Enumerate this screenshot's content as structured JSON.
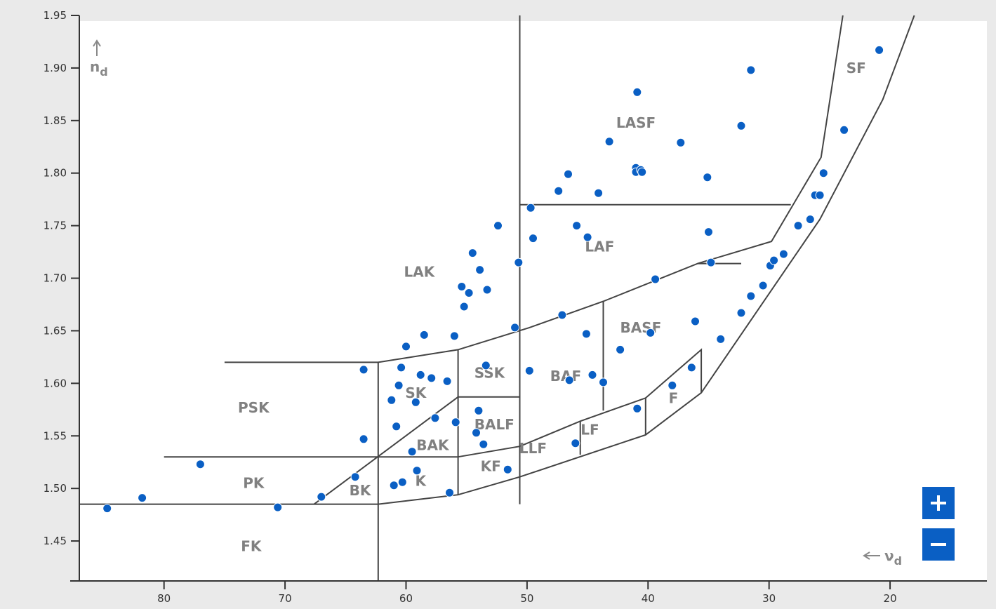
{
  "chart_data": {
    "type": "scatter",
    "xlabel": "νd",
    "ylabel": "nd",
    "xlim": [
      87,
      12
    ],
    "ylim": [
      1.412,
      1.95
    ],
    "x_reversed": true,
    "x_ticks": [
      80,
      70,
      60,
      50,
      40,
      30,
      20
    ],
    "y_ticks": [
      1.45,
      1.5,
      1.55,
      1.6,
      1.65,
      1.7,
      1.75,
      1.8,
      1.85,
      1.9,
      1.95
    ],
    "point_color": "#0a5fc4",
    "boundary_color": "#444444",
    "regions": [
      {
        "label": "LASF",
        "x": 41.0,
        "y": 1.847
      },
      {
        "label": "SF",
        "x": 22.8,
        "y": 1.899
      },
      {
        "label": "LAF",
        "x": 44.0,
        "y": 1.729
      },
      {
        "label": "LAK",
        "x": 58.9,
        "y": 1.705
      },
      {
        "label": "BASF",
        "x": 40.6,
        "y": 1.652
      },
      {
        "label": "SSK",
        "x": 53.1,
        "y": 1.609
      },
      {
        "label": "BAF",
        "x": 46.8,
        "y": 1.606
      },
      {
        "label": "SK",
        "x": 59.2,
        "y": 1.59
      },
      {
        "label": "PSK",
        "x": 72.6,
        "y": 1.576
      },
      {
        "label": "F",
        "x": 37.9,
        "y": 1.585
      },
      {
        "label": "BALF",
        "x": 52.7,
        "y": 1.56
      },
      {
        "label": "LF",
        "x": 44.8,
        "y": 1.555
      },
      {
        "label": "BAK",
        "x": 57.8,
        "y": 1.54
      },
      {
        "label": "LLF",
        "x": 49.5,
        "y": 1.537
      },
      {
        "label": "KF",
        "x": 53.0,
        "y": 1.52
      },
      {
        "label": "PK",
        "x": 72.6,
        "y": 1.504
      },
      {
        "label": "K",
        "x": 58.8,
        "y": 1.506
      },
      {
        "label": "BK",
        "x": 63.8,
        "y": 1.497
      },
      {
        "label": "FK",
        "x": 72.8,
        "y": 1.444
      }
    ],
    "boundaries": [
      [
        [
          87,
          1.485
        ],
        [
          62.3,
          1.485
        ],
        [
          55.7,
          1.494
        ],
        [
          50.6,
          1.511
        ],
        [
          40.2,
          1.551
        ],
        [
          35.6,
          1.591
        ],
        [
          25.8,
          1.756
        ],
        [
          20.6,
          1.87
        ],
        [
          18.0,
          1.95
        ]
      ],
      [
        [
          75.0,
          1.62
        ],
        [
          62.3,
          1.62
        ],
        [
          55.7,
          1.632
        ],
        [
          49.8,
          1.653
        ],
        [
          43.7,
          1.678
        ],
        [
          35.9,
          1.714
        ],
        [
          32.3,
          1.714
        ]
      ],
      [
        [
          50.6,
          1.77
        ],
        [
          28.2,
          1.77
        ]
      ],
      [
        [
          50.6,
          1.95
        ],
        [
          50.6,
          1.485
        ]
      ],
      [
        [
          62.3,
          1.62
        ],
        [
          62.3,
          1.412
        ]
      ],
      [
        [
          80.0,
          1.53
        ],
        [
          55.7,
          1.53
        ]
      ],
      [
        [
          67.6,
          1.485
        ],
        [
          55.7,
          1.587
        ],
        [
          50.6,
          1.587
        ]
      ],
      [
        [
          55.7,
          1.632
        ],
        [
          55.7,
          1.494
        ]
      ],
      [
        [
          55.7,
          1.53
        ],
        [
          50.6,
          1.54
        ],
        [
          45.6,
          1.564
        ],
        [
          40.2,
          1.586
        ],
        [
          35.6,
          1.632
        ],
        [
          35.6,
          1.591
        ]
      ],
      [
        [
          43.7,
          1.678
        ],
        [
          43.7,
          1.574
        ]
      ],
      [
        [
          45.6,
          1.564
        ],
        [
          45.6,
          1.532
        ]
      ],
      [
        [
          40.2,
          1.586
        ],
        [
          40.2,
          1.551
        ]
      ],
      [
        [
          35.9,
          1.714
        ],
        [
          29.8,
          1.735
        ],
        [
          25.7,
          1.815
        ],
        [
          23.9,
          1.95
        ]
      ]
    ],
    "points": [
      [
        84.7,
        1.481
      ],
      [
        81.8,
        1.491
      ],
      [
        77.0,
        1.523
      ],
      [
        70.6,
        1.482
      ],
      [
        67.0,
        1.492
      ],
      [
        64.2,
        1.511
      ],
      [
        63.5,
        1.547
      ],
      [
        63.5,
        1.613
      ],
      [
        61.2,
        1.584
      ],
      [
        60.8,
        1.559
      ],
      [
        60.6,
        1.598
      ],
      [
        60.4,
        1.615
      ],
      [
        60.0,
        1.635
      ],
      [
        59.5,
        1.535
      ],
      [
        61.0,
        1.503
      ],
      [
        60.3,
        1.506
      ],
      [
        59.2,
        1.582
      ],
      [
        59.1,
        1.517
      ],
      [
        58.8,
        1.608
      ],
      [
        58.5,
        1.646
      ],
      [
        57.9,
        1.605
      ],
      [
        57.6,
        1.567
      ],
      [
        56.6,
        1.602
      ],
      [
        56.4,
        1.496
      ],
      [
        56.0,
        1.645
      ],
      [
        55.9,
        1.563
      ],
      [
        55.4,
        1.692
      ],
      [
        55.2,
        1.673
      ],
      [
        54.8,
        1.686
      ],
      [
        54.5,
        1.724
      ],
      [
        54.2,
        1.553
      ],
      [
        54.0,
        1.574
      ],
      [
        53.9,
        1.708
      ],
      [
        53.6,
        1.542
      ],
      [
        53.4,
        1.617
      ],
      [
        53.3,
        1.689
      ],
      [
        52.4,
        1.75
      ],
      [
        51.6,
        1.518
      ],
      [
        51.0,
        1.653
      ],
      [
        50.7,
        1.715
      ],
      [
        49.8,
        1.612
      ],
      [
        49.7,
        1.767
      ],
      [
        49.5,
        1.738
      ],
      [
        47.4,
        1.783
      ],
      [
        47.1,
        1.665
      ],
      [
        46.6,
        1.799
      ],
      [
        46.5,
        1.603
      ],
      [
        46.0,
        1.543
      ],
      [
        45.9,
        1.75
      ],
      [
        45.1,
        1.647
      ],
      [
        45.0,
        1.739
      ],
      [
        44.6,
        1.608
      ],
      [
        44.1,
        1.781
      ],
      [
        43.7,
        1.601
      ],
      [
        43.2,
        1.83
      ],
      [
        42.3,
        1.632
      ],
      [
        41.0,
        1.805
      ],
      [
        41.0,
        1.801
      ],
      [
        40.9,
        1.877
      ],
      [
        40.9,
        1.576
      ],
      [
        40.6,
        1.803
      ],
      [
        40.5,
        1.801
      ],
      [
        39.8,
        1.648
      ],
      [
        39.4,
        1.699
      ],
      [
        38.0,
        1.598
      ],
      [
        37.3,
        1.829
      ],
      [
        36.4,
        1.615
      ],
      [
        36.1,
        1.659
      ],
      [
        35.1,
        1.796
      ],
      [
        35.0,
        1.744
      ],
      [
        34.8,
        1.715
      ],
      [
        34.0,
        1.642
      ],
      [
        32.3,
        1.845
      ],
      [
        32.3,
        1.667
      ],
      [
        31.5,
        1.898
      ],
      [
        31.5,
        1.683
      ],
      [
        30.5,
        1.693
      ],
      [
        29.9,
        1.712
      ],
      [
        29.6,
        1.717
      ],
      [
        28.8,
        1.723
      ],
      [
        27.6,
        1.75
      ],
      [
        26.6,
        1.756
      ],
      [
        26.2,
        1.779
      ],
      [
        25.8,
        1.779
      ],
      [
        25.5,
        1.8
      ],
      [
        23.8,
        1.841
      ],
      [
        20.9,
        1.917
      ]
    ]
  },
  "zoom_in_label": "+",
  "zoom_out_label": "−"
}
